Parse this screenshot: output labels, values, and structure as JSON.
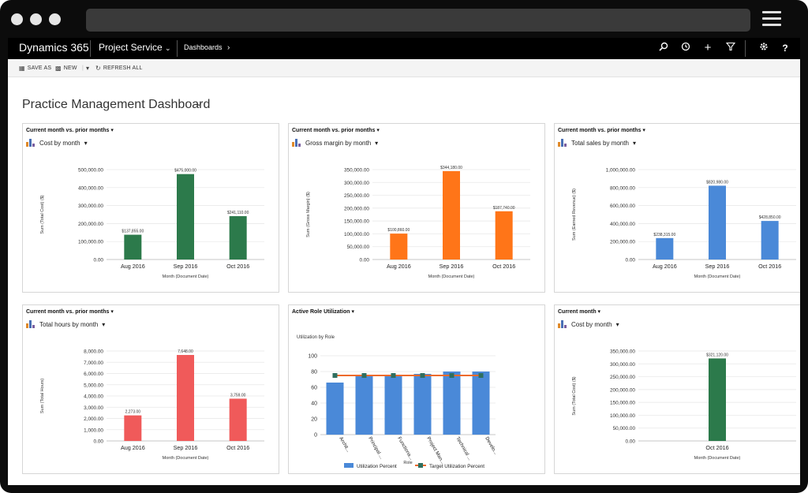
{
  "nav": {
    "brand": "Dynamics 365",
    "area": "Project Service",
    "crumb": "Dashboards"
  },
  "commands": {
    "save_as": "SAVE AS",
    "new": "NEW",
    "refresh_all": "REFRESH ALL"
  },
  "dashboard": {
    "title": "Practice Management Dashboard"
  },
  "colors": {
    "green": "#2c7a4b",
    "orange": "#ff7518",
    "blue": "#4a89d8",
    "red": "#f05a5a",
    "line": "#ed6a2c"
  },
  "panels": [
    {
      "header": "Current month vs. prior months",
      "view": "Cost by month",
      "chart_data": {
        "type": "bar",
        "categories": [
          "Aug 2016",
          "Sep 2016",
          "Oct 2016"
        ],
        "values": [
          137855,
          475000,
          241110
        ],
        "labels": [
          "$137,855.00",
          "$475,000.00",
          "$241,110.00"
        ],
        "ylabel": "Sum (Total Cost) ($)",
        "xlabel": "Month (Document Date)",
        "ticks": [
          "500,000.00",
          "400,000.00",
          "300,000.00",
          "200,000.00",
          "100,000.00",
          "0.00"
        ],
        "ymax": 500000,
        "color": "#2c7a4b"
      }
    },
    {
      "header": "Current month vs. prior months",
      "view": "Gross margin by month",
      "chart_data": {
        "type": "bar",
        "categories": [
          "Aug 2016",
          "Sep 2016",
          "Oct 2016"
        ],
        "values": [
          100860,
          344180,
          187740
        ],
        "labels": [
          "$100,860.00",
          "$344,180.00",
          "$187,740.00"
        ],
        "ylabel": "Sum (Gross Margin) ($)",
        "xlabel": "Month (Document Date)",
        "ticks": [
          "350,000.00",
          "300,000.00",
          "250,000.00",
          "200,000.00",
          "150,000.00",
          "100,000.00",
          "50,000.00",
          "0.00"
        ],
        "ymax": 350000,
        "color": "#ff7518"
      }
    },
    {
      "header": "Current month vs. prior months",
      "view": "Total sales by month",
      "chart_data": {
        "type": "bar",
        "categories": [
          "Aug 2016",
          "Sep 2016",
          "Oct 2016"
        ],
        "values": [
          238315,
          820980,
          428850
        ],
        "labels": [
          "$238,315.00",
          "$820,980.00",
          "$428,850.00"
        ],
        "ylabel": "Sum (Earned Revenue) ($)",
        "xlabel": "Month (Document Date)",
        "ticks": [
          "1,000,000.00",
          "800,000.00",
          "600,000.00",
          "400,000.00",
          "200,000.00",
          "0.00"
        ],
        "ymax": 1000000,
        "color": "#4a89d8"
      }
    },
    {
      "header": "Current month vs. prior months",
      "view": "Total hours by month",
      "chart_data": {
        "type": "bar",
        "categories": [
          "Aug 2016",
          "Sep 2016",
          "Oct 2016"
        ],
        "values": [
          2273,
          7648,
          3759
        ],
        "labels": [
          "2,273.00",
          "7,648.00",
          "3,759.00"
        ],
        "ylabel": "Sum (Total Hours)",
        "xlabel": "Month (Document Date)",
        "ticks": [
          "8,000.00",
          "7,000.00",
          "6,000.00",
          "5,000.00",
          "4,000.00",
          "3,000.00",
          "2,000.00",
          "1,000.00",
          "0.00"
        ],
        "ymax": 8000,
        "color": "#f05a5a"
      }
    },
    {
      "header": "Active Role Utilization",
      "view": "",
      "chart_data": {
        "type": "bar",
        "title": "Utilization by Role",
        "categories": [
          "Archit...",
          "Principal ...",
          "Functiona...",
          "Project Man...",
          "Technical ...",
          "Develo..."
        ],
        "series": [
          {
            "name": "Utilization Percent",
            "values": [
              66,
              75,
              75,
              77,
              80,
              80
            ]
          },
          {
            "name": "Target Utilization Percent",
            "values": [
              75,
              75,
              75,
              75,
              75,
              75
            ]
          }
        ],
        "xlabel": "Role",
        "ticks": [
          "100",
          "80",
          "60",
          "40",
          "20",
          "0"
        ],
        "ymax": 100,
        "color": "#4a89d8"
      }
    },
    {
      "header": "Current month",
      "view": "Cost by month",
      "chart_data": {
        "type": "bar",
        "categories": [
          "Oct 2016"
        ],
        "values": [
          321120
        ],
        "labels": [
          "$321,120.00"
        ],
        "ylabel": "Sum (Total Cost) ($)",
        "xlabel": "Month (Document Date)",
        "ticks": [
          "350,000.00",
          "300,000.00",
          "250,000.00",
          "200,000.00",
          "150,000.00",
          "100,000.00",
          "50,000.00",
          "0.00"
        ],
        "ymax": 350000,
        "color": "#2c7a4b"
      }
    }
  ]
}
